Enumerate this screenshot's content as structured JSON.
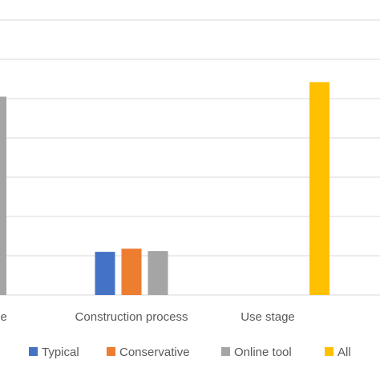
{
  "chart_data": {
    "type": "bar",
    "categories": [
      "...tage",
      "Construction process",
      "Use stage"
    ],
    "series": [
      {
        "name": "Typical",
        "color": "#4472c4",
        "values": [
          null,
          1.1,
          null
        ]
      },
      {
        "name": "Conservative",
        "color": "#ed7d31",
        "values": [
          null,
          1.18,
          null
        ]
      },
      {
        "name": "Online tool",
        "color": "#a5a5a5",
        "values": [
          5.05,
          1.12,
          null
        ]
      },
      {
        "name": "All",
        "color": "#ffc000",
        "values": [
          null,
          null,
          5.42
        ]
      }
    ],
    "ylim": [
      0,
      7.5
    ],
    "grid": true,
    "legend": "bottom"
  }
}
